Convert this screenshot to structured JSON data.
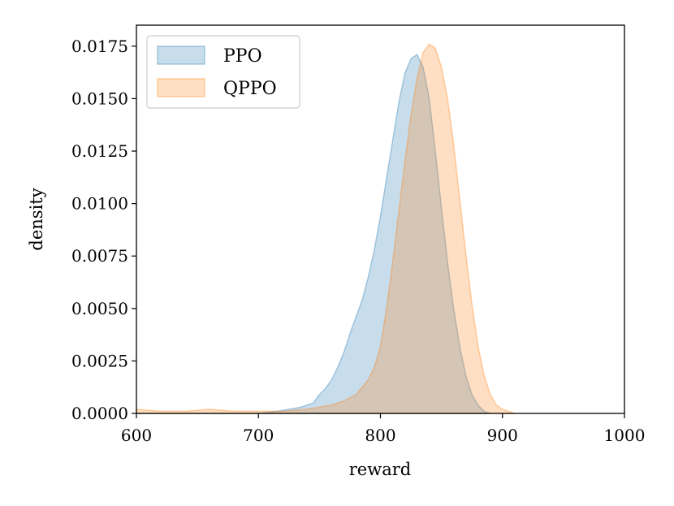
{
  "chart_data": {
    "type": "area",
    "title": "",
    "xlabel": "reward",
    "ylabel": "density",
    "xlim": [
      600,
      1000
    ],
    "ylim": [
      0,
      0.0185
    ],
    "xticks": [
      600,
      700,
      800,
      900,
      1000
    ],
    "xtick_labels": [
      "600",
      "700",
      "800",
      "900",
      "1000"
    ],
    "yticks": [
      0,
      0.0025,
      0.005,
      0.0075,
      0.01,
      0.0125,
      0.015,
      0.0175
    ],
    "ytick_labels": [
      "0.0000",
      "0.0025",
      "0.0050",
      "0.0075",
      "0.0100",
      "0.0125",
      "0.0150",
      "0.0175"
    ],
    "grid": false,
    "legend_position": "top-left",
    "series": [
      {
        "name": "PPO",
        "fill_color": "#1f77b4",
        "x": [
          600,
          700,
          715,
          725,
          735,
          745,
          750,
          755,
          760,
          765,
          770,
          775,
          780,
          785,
          790,
          795,
          800,
          805,
          810,
          815,
          820,
          825,
          830,
          835,
          840,
          845,
          850,
          855,
          860,
          865,
          870,
          875,
          880,
          885,
          890
        ],
        "values": [
          0.0,
          0.0,
          0.0001,
          0.0002,
          0.0003,
          0.0005,
          0.0009,
          0.0012,
          0.0016,
          0.0022,
          0.0029,
          0.0038,
          0.0046,
          0.0054,
          0.0065,
          0.0078,
          0.0094,
          0.0112,
          0.013,
          0.0148,
          0.0162,
          0.0169,
          0.0171,
          0.0165,
          0.015,
          0.0125,
          0.0098,
          0.0072,
          0.005,
          0.0032,
          0.0018,
          0.0009,
          0.0004,
          0.0001,
          0.0
        ]
      },
      {
        "name": "QPPO",
        "fill_color": "#ff7f0e",
        "x": [
          600,
          620,
          640,
          660,
          680,
          700,
          720,
          740,
          760,
          770,
          780,
          790,
          795,
          800,
          805,
          810,
          815,
          820,
          825,
          830,
          835,
          840,
          845,
          850,
          855,
          860,
          865,
          870,
          875,
          880,
          885,
          890,
          895,
          900,
          905,
          910
        ],
        "values": [
          0.0002,
          0.0001,
          0.0001,
          0.0002,
          0.0001,
          0.0001,
          0.0001,
          0.0002,
          0.0004,
          0.0006,
          0.0009,
          0.0016,
          0.0022,
          0.0032,
          0.005,
          0.0072,
          0.0096,
          0.012,
          0.0142,
          0.016,
          0.0172,
          0.0176,
          0.0174,
          0.0165,
          0.015,
          0.0128,
          0.0102,
          0.0076,
          0.0052,
          0.0032,
          0.0018,
          0.0009,
          0.0004,
          0.0002,
          0.0001,
          0.0
        ]
      }
    ]
  }
}
